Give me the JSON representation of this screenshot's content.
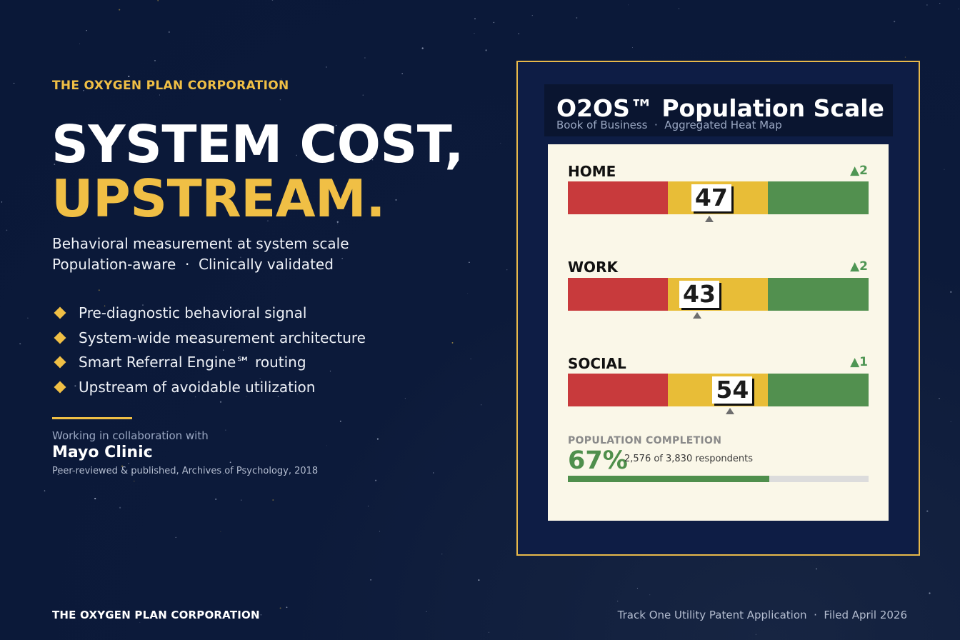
{
  "brand": {
    "eyebrow": "THE OXYGEN PLAN CORPORATION",
    "accent": "#f0bf45"
  },
  "hero": {
    "headline_line1": "SYSTEM COST,",
    "headline_line2": "UPSTREAM.",
    "subtitle_line1": "Behavioral measurement at system scale",
    "subtitle_line2": "Population-aware  ·  Clinically validated"
  },
  "bullets": [
    "Pre-diagnostic behavioral signal",
    "System-wide measurement architecture",
    "Smart Referral Engine℠ routing",
    "Upstream of avoidable utilization"
  ],
  "collaboration": {
    "label": "Working in collaboration with",
    "partner": "Mayo Clinic",
    "note": "Peer-reviewed & published, Archives of Psychology, 2018"
  },
  "footer": {
    "left": "THE OXYGEN PLAN CORPORATION",
    "right": "Track One Utility Patent Application  ·  Filed April 2026"
  },
  "panel": {
    "title": "O2OS™ Population Scale",
    "subtitle": "Book of Business  ·  Aggregated Heat Map",
    "scale_max": 100,
    "zone_colors": [
      "#c83a3c",
      "#e8bd37",
      "#52904f"
    ],
    "rows": [
      {
        "label": "HOME",
        "score": "47",
        "value": 47,
        "delta": "▲2"
      },
      {
        "label": "WORK",
        "score": "43",
        "value": 43,
        "delta": "▲2"
      },
      {
        "label": "SOCIAL",
        "score": "54",
        "value": 54,
        "delta": "▲1"
      }
    ],
    "completion": {
      "label": "POPULATION COMPLETION",
      "percent_text": "67%",
      "fraction": 0.67,
      "count_text": "2,576 of 3,830 respondents"
    }
  }
}
